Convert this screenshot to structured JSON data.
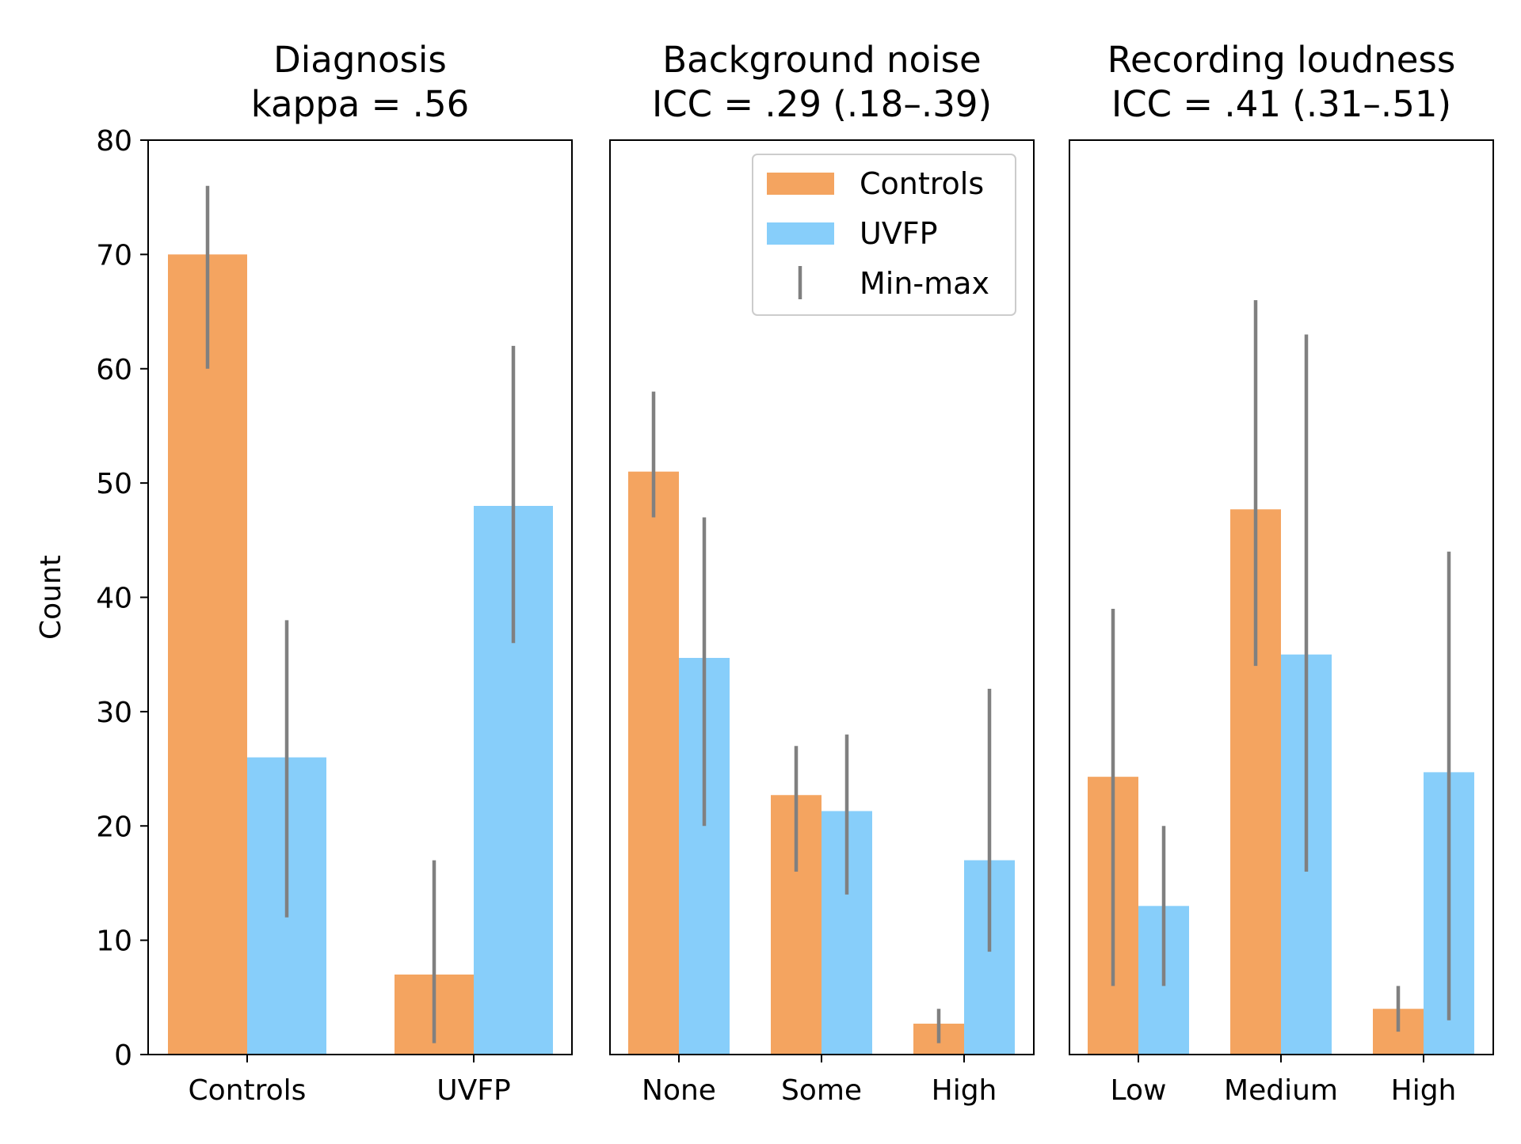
{
  "chart_data": [
    {
      "type": "bar",
      "title": "Diagnosis",
      "subtitle": "kappa = .56",
      "ylabel": "Count",
      "ylim": [
        0,
        80
      ],
      "yticks": [
        0,
        10,
        20,
        30,
        40,
        50,
        60,
        70,
        80
      ],
      "categories": [
        "Controls",
        "UVFP"
      ],
      "series": [
        {
          "name": "Controls",
          "values": [
            70,
            7
          ],
          "min": [
            60,
            1
          ],
          "max": [
            76,
            17
          ]
        },
        {
          "name": "UVFP",
          "values": [
            26,
            48
          ],
          "min": [
            12,
            36
          ],
          "max": [
            38,
            62
          ]
        }
      ]
    },
    {
      "type": "bar",
      "title": "Background noise",
      "subtitle": "ICC = .29 (.18–.39)",
      "ylim": [
        0,
        80
      ],
      "categories": [
        "None",
        "Some",
        "High"
      ],
      "series": [
        {
          "name": "Controls",
          "values": [
            51,
            22.7,
            2.7
          ],
          "min": [
            47,
            16,
            1
          ],
          "max": [
            58,
            27,
            4
          ]
        },
        {
          "name": "UVFP",
          "values": [
            34.7,
            21.3,
            17
          ],
          "min": [
            20,
            14,
            9
          ],
          "max": [
            47,
            28,
            32
          ]
        }
      ]
    },
    {
      "type": "bar",
      "title": "Recording loudness",
      "subtitle": "ICC = .41 (.31–.51)",
      "ylim": [
        0,
        80
      ],
      "categories": [
        "Low",
        "Medium",
        "High"
      ],
      "series": [
        {
          "name": "Controls",
          "values": [
            24.3,
            47.7,
            4
          ],
          "min": [
            6,
            34,
            2
          ],
          "max": [
            39,
            66,
            6
          ]
        },
        {
          "name": "UVFP",
          "values": [
            13,
            35,
            24.7
          ],
          "min": [
            6,
            16,
            3
          ],
          "max": [
            20,
            63,
            44
          ]
        }
      ]
    }
  ],
  "legend": {
    "placement": "top-right",
    "items": [
      "Controls",
      "UVFP",
      "Min-max"
    ]
  },
  "colors": {
    "controls": "#f4a460",
    "uvfp": "#87cefa",
    "errorbar": "#808080"
  }
}
